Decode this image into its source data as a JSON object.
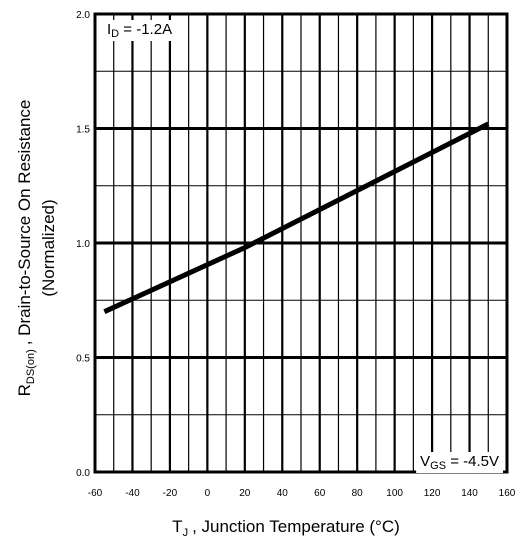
{
  "chart_data": {
    "type": "line",
    "xlim": [
      -60,
      160
    ],
    "ylim": [
      0.0,
      2.0
    ],
    "x_ticks": [
      "-60",
      "-40",
      "-20",
      "0",
      "20",
      "40",
      "60",
      "80",
      "100",
      "120",
      "140",
      "160"
    ],
    "x_tick_values": [
      -60,
      -40,
      -20,
      0,
      20,
      40,
      60,
      80,
      100,
      120,
      140,
      160
    ],
    "y_ticks": [
      "0.0",
      "0.5",
      "1.0",
      "1.5",
      "2.0"
    ],
    "y_tick_values": [
      0.0,
      0.5,
      1.0,
      1.5,
      2.0
    ],
    "xlabel": {
      "main": "T",
      "sub": "J",
      "rest": ", Junction Temperature (°C)"
    },
    "ylabel": {
      "main": "R",
      "sub": "DS(on)",
      "rest": ", Drain-to-Source On Resistance",
      "line2": "(Normalized)"
    },
    "annotations": {
      "top_left": {
        "main": "I",
        "sub": "D",
        "rest": " = -1.2A"
      },
      "bottom_right": {
        "main": "V",
        "sub": "GS",
        "rest": " = -4.5V"
      }
    },
    "grid": true,
    "series": [
      {
        "x": [
          -55,
          20,
          150
        ],
        "y": [
          0.7,
          0.98,
          1.52
        ]
      }
    ]
  }
}
